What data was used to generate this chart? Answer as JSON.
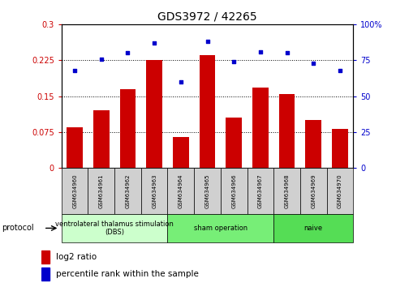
{
  "title": "GDS3972 / 42265",
  "samples": [
    "GSM634960",
    "GSM634961",
    "GSM634962",
    "GSM634963",
    "GSM634964",
    "GSM634965",
    "GSM634966",
    "GSM634967",
    "GSM634968",
    "GSM634969",
    "GSM634970"
  ],
  "log2_ratio": [
    0.085,
    0.12,
    0.165,
    0.225,
    0.065,
    0.235,
    0.105,
    0.168,
    0.155,
    0.1,
    0.082
  ],
  "percentile_rank": [
    68,
    76,
    80,
    87,
    60,
    88,
    74,
    81,
    80,
    73,
    68
  ],
  "bar_color": "#cc0000",
  "dot_color": "#0000cc",
  "ylim_left": [
    0,
    0.3
  ],
  "ylim_right": [
    0,
    100
  ],
  "yticks_left": [
    0,
    0.075,
    0.15,
    0.225,
    0.3
  ],
  "ytick_labels_left": [
    "0",
    "0.075",
    "0.15",
    "0.225",
    "0.3"
  ],
  "yticks_right": [
    0,
    25,
    50,
    75,
    100
  ],
  "ytick_labels_right": [
    "0",
    "25",
    "50",
    "75",
    "100%"
  ],
  "gridlines": [
    0.075,
    0.15,
    0.225,
    0.3
  ],
  "protocol_groups": [
    {
      "label": "ventrolateral thalamus stimulation\n(DBS)",
      "start": 0,
      "end": 3,
      "color": "#ccffcc"
    },
    {
      "label": "sham operation",
      "start": 4,
      "end": 7,
      "color": "#77ee77"
    },
    {
      "label": "naive",
      "start": 8,
      "end": 10,
      "color": "#55dd55"
    }
  ],
  "protocol_label": "protocol",
  "legend_bar_label": "log2 ratio",
  "legend_dot_label": "percentile rank within the sample",
  "tick_label_color_left": "#cc0000",
  "tick_label_color_right": "#0000cc",
  "sample_box_color": "#d0d0d0",
  "title_fontsize": 10,
  "bar_width": 0.6
}
